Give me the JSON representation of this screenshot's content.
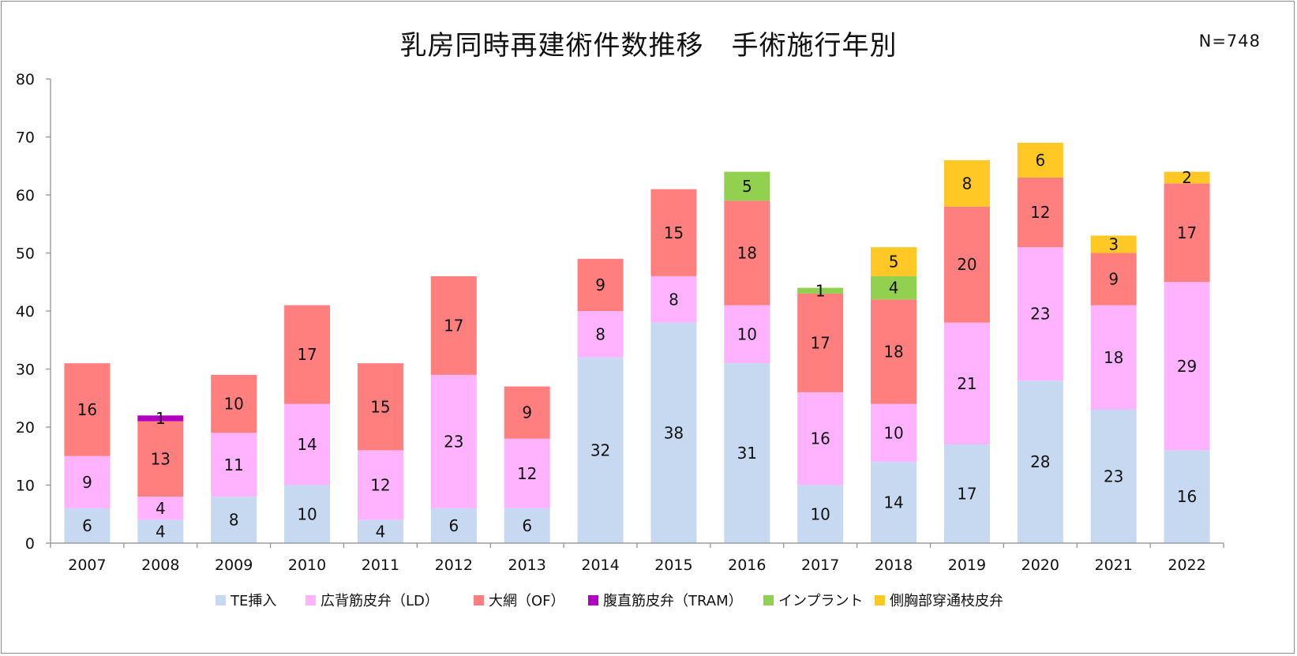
{
  "chart_data": {
    "type": "bar",
    "stacked": true,
    "title": "乳房同時再建術件数推移　手術施行年別",
    "annotation": "N=748",
    "xlabel": "",
    "ylabel": "",
    "ylim": [
      0,
      80
    ],
    "yticks": [
      0,
      10,
      20,
      30,
      40,
      50,
      60,
      70,
      80
    ],
    "grid": false,
    "legend_position": "bottom",
    "categories": [
      "2007",
      "2008",
      "2009",
      "2010",
      "2011",
      "2012",
      "2013",
      "2014",
      "2015",
      "2016",
      "2017",
      "2018",
      "2019",
      "2020",
      "2021",
      "2022"
    ],
    "series": [
      {
        "name": "TE挿入",
        "color": "#c6d9f0",
        "values": [
          6,
          4,
          8,
          10,
          4,
          6,
          6,
          32,
          38,
          31,
          10,
          14,
          17,
          28,
          23,
          16
        ]
      },
      {
        "name": "広背筋皮弁（LD）",
        "color": "#ffb3ff",
        "values": [
          9,
          4,
          11,
          14,
          12,
          23,
          12,
          8,
          8,
          10,
          16,
          10,
          21,
          23,
          18,
          29
        ]
      },
      {
        "name": "大網（OF）",
        "color": "#ff7f7f",
        "values": [
          16,
          13,
          10,
          17,
          15,
          17,
          9,
          9,
          15,
          18,
          17,
          18,
          20,
          12,
          9,
          17
        ]
      },
      {
        "name": "腹直筋皮弁（TRAM）",
        "color": "#b000c0",
        "values": [
          0,
          1,
          0,
          0,
          0,
          0,
          0,
          0,
          0,
          0,
          0,
          0,
          0,
          0,
          0,
          0
        ]
      },
      {
        "name": "インプラント",
        "color": "#92d050",
        "values": [
          0,
          0,
          0,
          0,
          0,
          0,
          0,
          0,
          0,
          5,
          1,
          4,
          0,
          0,
          0,
          0
        ]
      },
      {
        "name": "側胸部穿通枝皮弁",
        "color": "#ffc824",
        "values": [
          0,
          0,
          0,
          0,
          0,
          0,
          0,
          0,
          0,
          0,
          0,
          5,
          8,
          6,
          3,
          2
        ]
      }
    ]
  }
}
